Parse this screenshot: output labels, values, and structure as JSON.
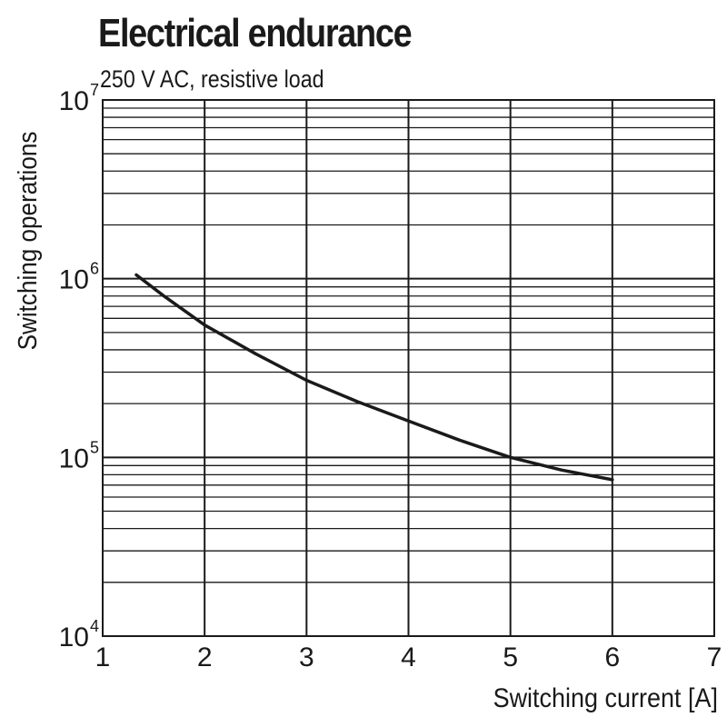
{
  "chart_data": {
    "type": "line",
    "title": "Electrical endurance",
    "subtitle": "250 V AC, resistive load",
    "xlabel": "Switching current [A]",
    "ylabel": "Switching operations",
    "x_scale": "linear",
    "y_scale": "log",
    "xlim": [
      1,
      7
    ],
    "ylim": [
      10000,
      10000000
    ],
    "x_ticks": [
      "1",
      "2",
      "3",
      "4",
      "5",
      "6",
      "7"
    ],
    "y_ticks": [
      {
        "base": "10",
        "exp": "4"
      },
      {
        "base": "10",
        "exp": "5"
      },
      {
        "base": "10",
        "exp": "6"
      },
      {
        "base": "10",
        "exp": "7"
      }
    ],
    "grid": true,
    "legend": "none",
    "colors": {
      "curve": "#1a1a1a",
      "grid": "#1a1a1a",
      "text": "#1a1a1a"
    },
    "series": [
      {
        "x": [
          1.33,
          1.6,
          2.0,
          2.5,
          3.0,
          3.5,
          4.0,
          4.5,
          5.0,
          5.5,
          6.0
        ],
        "y": [
          1050000,
          800000,
          550000,
          380000,
          270000,
          205000,
          160000,
          125000,
          100000,
          85000,
          75000
        ]
      }
    ]
  }
}
